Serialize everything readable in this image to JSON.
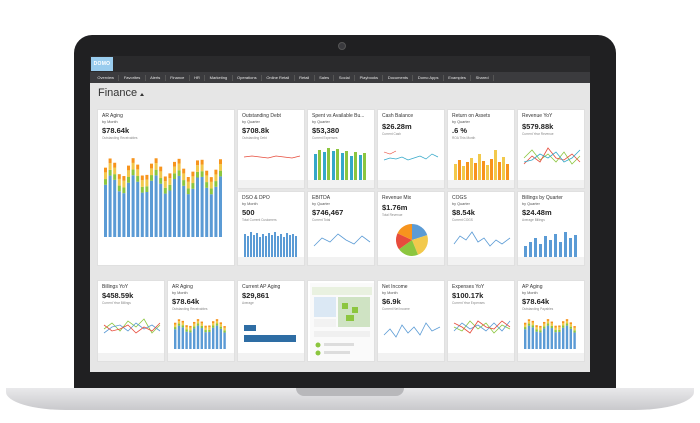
{
  "logo": "DOMO",
  "nav": [
    "Overview",
    "Favorites",
    "Alerts",
    "Finance",
    "HR",
    "Marketing",
    "Operations",
    "Online Retail",
    "Retail",
    "Sales",
    "Social",
    "Playbooks",
    "Documents",
    "Domo Apps",
    "Examples",
    "Shared"
  ],
  "page_title": "Finance",
  "cards": {
    "ar_aging_big": {
      "title": "AR Aging",
      "sub": "by Month",
      "value": "$78.64k",
      "foot": "Outstanding Receivables"
    },
    "outstanding_debt": {
      "title": "Outstanding Debt",
      "sub": "by Quarter",
      "value": "$708.8k",
      "foot": "Outstanding Debt"
    },
    "spent_vs_budget": {
      "title": "Spent vs Available Bu...",
      "sub": "by Quarter",
      "value": "$53,380",
      "foot": "Current Expenses"
    },
    "cash_balance": {
      "title": "Cash Balance",
      "sub": "",
      "value": "$26.28m",
      "foot": "Current Cash"
    },
    "return_on_assets": {
      "title": "Return on Assets",
      "sub": "by Quarter",
      "value": ".6 %",
      "foot": "ROA This Month"
    },
    "revenue_yoy": {
      "title": "Revenue YoY",
      "sub": "",
      "value": "$579.88k",
      "foot": "Current Year Revenue"
    },
    "dso_dpo": {
      "title": "DSO & DPO",
      "sub": "by Month",
      "value": "500",
      "foot": "Total Current Customers"
    },
    "ebitda": {
      "title": "EBITDA",
      "sub": "by Quarter",
      "value": "$746,467",
      "foot": "Current Total"
    },
    "revenue_mix": {
      "title": "Revenue Mix",
      "sub": "",
      "value": "$1.76m",
      "foot": "Total Revenue"
    },
    "cogs": {
      "title": "COGS",
      "sub": "by Quarter",
      "value": "$8.54k",
      "foot": "Current COGS"
    },
    "billings_by_quarter": {
      "title": "Billings by Quarter",
      "sub": "by Quarter",
      "value": "$24.48m",
      "foot": "Average Billings"
    },
    "billings_yoy": {
      "title": "Billings YoY",
      "sub": "",
      "value": "$458.59k",
      "foot": "Current Year Billings"
    },
    "ar_aging_small": {
      "title": "AR Aging",
      "sub": "by Month",
      "value": "$78.64k",
      "foot": "Outstanding Receivables"
    },
    "current_ap_aging": {
      "title": "Current AP Aging",
      "sub": "",
      "value": "$29,861",
      "foot": "Average"
    },
    "net_income": {
      "title": "Net Income",
      "sub": "by Month",
      "value": "$6.9k",
      "foot": "Current Net Income"
    },
    "expenses_yoy": {
      "title": "Expenses YoY",
      "sub": "",
      "value": "$100.17k",
      "foot": "Current Year Expenses"
    },
    "ap_aging": {
      "title": "AP Aging",
      "sub": "by Month",
      "value": "$78.64k",
      "foot": "Outstanding Payables"
    }
  },
  "colors": {
    "blue": "#5b9bd5",
    "green": "#8cc63f",
    "orange": "#f7941d",
    "yellow": "#f2c94c",
    "red": "#e74c3c",
    "teal": "#34a8c9",
    "navy": "#2e6da4"
  },
  "icons": [
    "caret-up-icon"
  ]
}
